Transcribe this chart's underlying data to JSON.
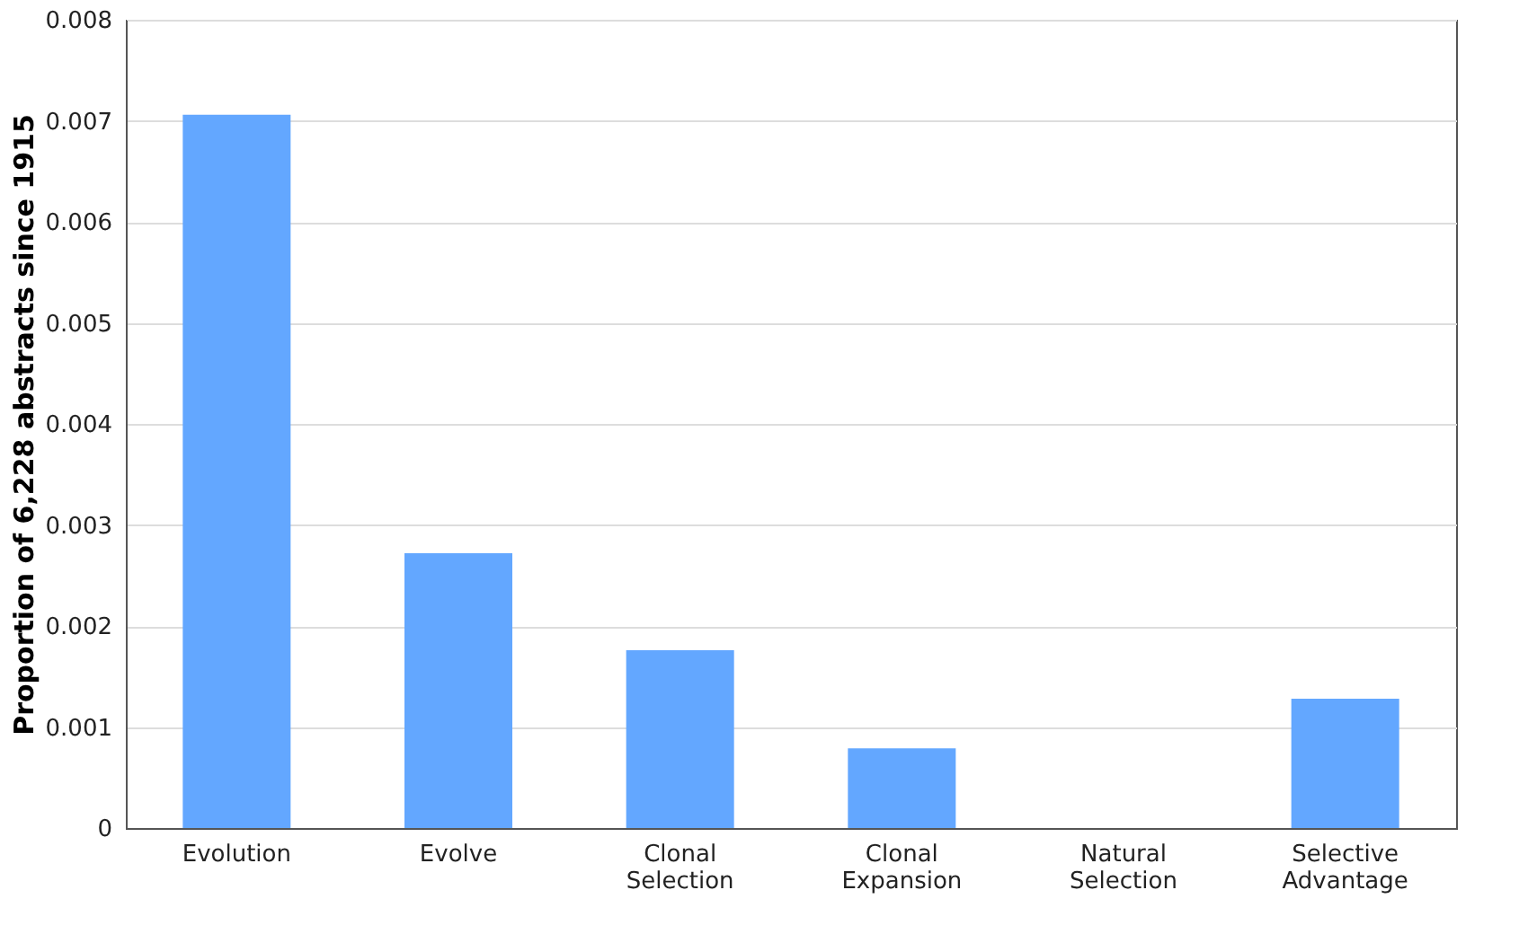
{
  "chart_data": {
    "type": "bar",
    "ylabel": "Proportion of 6,228 abstracts since 1915",
    "categories": [
      "Evolution",
      "Evolve",
      "Clonal Selection",
      "Clonal Expansion",
      "Natural Selection",
      "Selective Advantage"
    ],
    "values": [
      0.00706,
      0.00272,
      0.00176,
      0.00079,
      0,
      0.00128
    ],
    "color": "#63a7ff",
    "ylim": [
      0,
      0.008
    ],
    "yticks": [
      0,
      0.001,
      0.002,
      0.003,
      0.004,
      0.005,
      0.006,
      0.007,
      0.008
    ],
    "grid": "y"
  }
}
